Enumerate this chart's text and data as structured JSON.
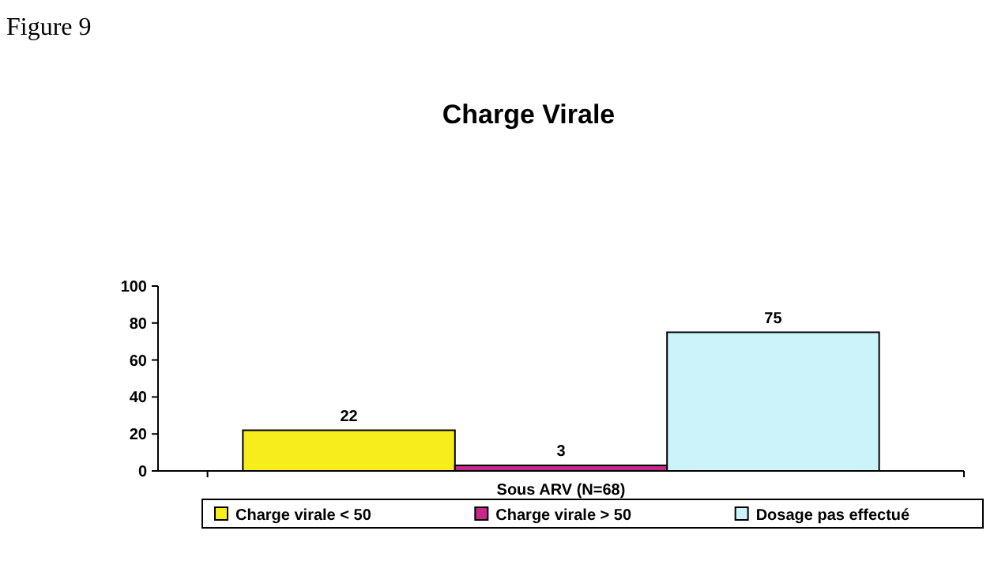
{
  "chart_data": {
    "type": "bar",
    "title": "Charge Virale",
    "annotations": [
      "Figure 9"
    ],
    "categories": [
      "Sous ARV (N=68)"
    ],
    "series": [
      {
        "name": "Charge virale < 50",
        "color": "#f7ec1c",
        "values": [
          22
        ]
      },
      {
        "name": "Charge virale > 50",
        "color": "#c8288c",
        "values": [
          3
        ]
      },
      {
        "name": "Dosage pas effectué",
        "color": "#cdf3fa",
        "values": [
          75
        ]
      }
    ],
    "ylim": [
      0,
      100
    ],
    "yticks": [
      0,
      20,
      40,
      60,
      80,
      100
    ],
    "grid": false,
    "legend": "bottom",
    "data_labels": true
  }
}
